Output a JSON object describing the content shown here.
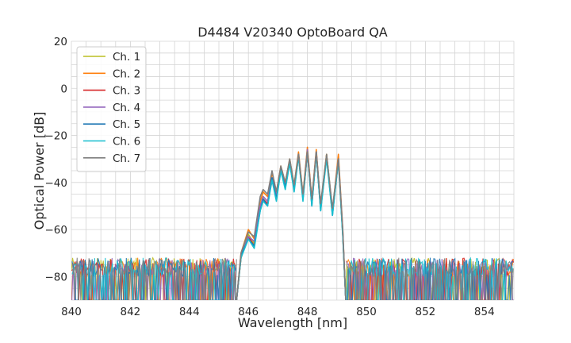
{
  "chart_data": {
    "type": "line",
    "title": "D4484 V20340 OptoBoard QA",
    "xlabel": "Wavelength [nm]",
    "ylabel": "Optical Power [dB]",
    "xlim": [
      840,
      855
    ],
    "ylim": [
      -90,
      20
    ],
    "x_ticks": [
      840,
      842,
      844,
      846,
      848,
      850,
      852,
      854
    ],
    "y_ticks": [
      20,
      0,
      -20,
      -40,
      -60,
      -80
    ],
    "x_minor_step": 0.5,
    "y_minor_step": 5,
    "grid": true,
    "legend_position": "top-left",
    "noise_floor": {
      "low": -90,
      "high": -72
    },
    "series": [
      {
        "name": "Ch. 1",
        "color": "#bcbd22",
        "points": [
          [
            845.6,
            -90
          ],
          [
            845.75,
            -72
          ],
          [
            846.0,
            -62
          ],
          [
            846.2,
            -66
          ],
          [
            846.4,
            -50
          ],
          [
            846.5,
            -46
          ],
          [
            846.65,
            -48
          ],
          [
            846.8,
            -38
          ],
          [
            846.95,
            -46
          ],
          [
            847.1,
            -34
          ],
          [
            847.25,
            -41
          ],
          [
            847.4,
            -31
          ],
          [
            847.55,
            -42
          ],
          [
            847.7,
            -28
          ],
          [
            847.85,
            -46
          ],
          [
            848.0,
            -26
          ],
          [
            848.15,
            -48
          ],
          [
            848.3,
            -27
          ],
          [
            848.45,
            -50
          ],
          [
            848.65,
            -28
          ],
          [
            848.85,
            -52
          ],
          [
            849.05,
            -30
          ],
          [
            849.2,
            -62
          ],
          [
            849.3,
            -90
          ]
        ]
      },
      {
        "name": "Ch. 2",
        "color": "#ff7f0e",
        "points": [
          [
            845.6,
            -90
          ],
          [
            845.75,
            -70
          ],
          [
            846.0,
            -60
          ],
          [
            846.2,
            -64
          ],
          [
            846.4,
            -48
          ],
          [
            846.5,
            -44
          ],
          [
            846.65,
            -46
          ],
          [
            846.8,
            -36
          ],
          [
            846.95,
            -44
          ],
          [
            847.1,
            -33
          ],
          [
            847.25,
            -40
          ],
          [
            847.4,
            -30
          ],
          [
            847.55,
            -41
          ],
          [
            847.7,
            -27
          ],
          [
            847.85,
            -45
          ],
          [
            848.0,
            -25
          ],
          [
            848.15,
            -47
          ],
          [
            848.3,
            -26
          ],
          [
            848.45,
            -50
          ],
          [
            848.65,
            -28
          ],
          [
            848.85,
            -52
          ],
          [
            849.05,
            -28
          ],
          [
            849.2,
            -60
          ],
          [
            849.3,
            -90
          ]
        ]
      },
      {
        "name": "Ch. 3",
        "color": "#d62728",
        "points": [
          [
            845.6,
            -90
          ],
          [
            845.75,
            -72
          ],
          [
            846.0,
            -63
          ],
          [
            846.2,
            -67
          ],
          [
            846.4,
            -51
          ],
          [
            846.5,
            -47
          ],
          [
            846.65,
            -49
          ],
          [
            846.8,
            -39
          ],
          [
            846.95,
            -47
          ],
          [
            847.1,
            -35
          ],
          [
            847.25,
            -42
          ],
          [
            847.4,
            -32
          ],
          [
            847.55,
            -43
          ],
          [
            847.7,
            -29
          ],
          [
            847.85,
            -47
          ],
          [
            848.0,
            -27
          ],
          [
            848.15,
            -49
          ],
          [
            848.3,
            -28
          ],
          [
            848.45,
            -51
          ],
          [
            848.65,
            -29
          ],
          [
            848.85,
            -53
          ],
          [
            849.05,
            -31
          ],
          [
            849.2,
            -62
          ],
          [
            849.3,
            -90
          ]
        ]
      },
      {
        "name": "Ch. 4",
        "color": "#9467bd",
        "points": [
          [
            845.6,
            -90
          ],
          [
            845.75,
            -71
          ],
          [
            846.0,
            -63
          ],
          [
            846.2,
            -65
          ],
          [
            846.4,
            -50
          ],
          [
            846.5,
            -46
          ],
          [
            846.65,
            -48
          ],
          [
            846.8,
            -38
          ],
          [
            846.95,
            -46
          ],
          [
            847.1,
            -34
          ],
          [
            847.25,
            -41
          ],
          [
            847.4,
            -31
          ],
          [
            847.55,
            -42
          ],
          [
            847.7,
            -28
          ],
          [
            847.85,
            -46
          ],
          [
            848.0,
            -26
          ],
          [
            848.15,
            -48
          ],
          [
            848.3,
            -27
          ],
          [
            848.45,
            -50
          ],
          [
            848.65,
            -29
          ],
          [
            848.85,
            -52
          ],
          [
            849.05,
            -30
          ],
          [
            849.2,
            -61
          ],
          [
            849.3,
            -90
          ]
        ]
      },
      {
        "name": "Ch. 5",
        "color": "#1f77b4",
        "points": [
          [
            845.6,
            -90
          ],
          [
            845.75,
            -71
          ],
          [
            846.0,
            -64
          ],
          [
            846.2,
            -67
          ],
          [
            846.4,
            -52
          ],
          [
            846.5,
            -47
          ],
          [
            846.65,
            -50
          ],
          [
            846.8,
            -38
          ],
          [
            846.95,
            -47
          ],
          [
            847.1,
            -34
          ],
          [
            847.25,
            -42
          ],
          [
            847.4,
            -31
          ],
          [
            847.55,
            -43
          ],
          [
            847.7,
            -28
          ],
          [
            847.85,
            -47
          ],
          [
            848.0,
            -27
          ],
          [
            848.15,
            -50
          ],
          [
            848.3,
            -27
          ],
          [
            848.45,
            -52
          ],
          [
            848.65,
            -29
          ],
          [
            848.85,
            -54
          ],
          [
            849.05,
            -30
          ],
          [
            849.2,
            -62
          ],
          [
            849.3,
            -90
          ]
        ]
      },
      {
        "name": "Ch. 6",
        "color": "#17becf",
        "points": [
          [
            845.6,
            -90
          ],
          [
            845.75,
            -72
          ],
          [
            846.0,
            -64
          ],
          [
            846.2,
            -68
          ],
          [
            846.4,
            -52
          ],
          [
            846.5,
            -48
          ],
          [
            846.65,
            -50
          ],
          [
            846.8,
            -39
          ],
          [
            846.95,
            -48
          ],
          [
            847.1,
            -35
          ],
          [
            847.25,
            -43
          ],
          [
            847.4,
            -32
          ],
          [
            847.55,
            -44
          ],
          [
            847.7,
            -29
          ],
          [
            847.85,
            -48
          ],
          [
            848.0,
            -27
          ],
          [
            848.15,
            -50
          ],
          [
            848.3,
            -28
          ],
          [
            848.45,
            -52
          ],
          [
            848.65,
            -30
          ],
          [
            848.85,
            -54
          ],
          [
            849.05,
            -31
          ],
          [
            849.2,
            -63
          ],
          [
            849.3,
            -90
          ]
        ]
      },
      {
        "name": "Ch. 7",
        "color": "#7f7f7f",
        "points": [
          [
            845.6,
            -90
          ],
          [
            845.75,
            -70
          ],
          [
            846.0,
            -61
          ],
          [
            846.2,
            -63
          ],
          [
            846.4,
            -46
          ],
          [
            846.5,
            -43
          ],
          [
            846.65,
            -45
          ],
          [
            846.8,
            -35
          ],
          [
            846.95,
            -44
          ],
          [
            847.1,
            -33
          ],
          [
            847.25,
            -40
          ],
          [
            847.4,
            -30
          ],
          [
            847.55,
            -41
          ],
          [
            847.7,
            -28
          ],
          [
            847.85,
            -45
          ],
          [
            848.0,
            -27
          ],
          [
            848.15,
            -47
          ],
          [
            848.3,
            -27
          ],
          [
            848.45,
            -49
          ],
          [
            848.65,
            -28
          ],
          [
            848.85,
            -51
          ],
          [
            849.05,
            -30
          ],
          [
            849.2,
            -60
          ],
          [
            849.3,
            -90
          ]
        ]
      }
    ]
  }
}
